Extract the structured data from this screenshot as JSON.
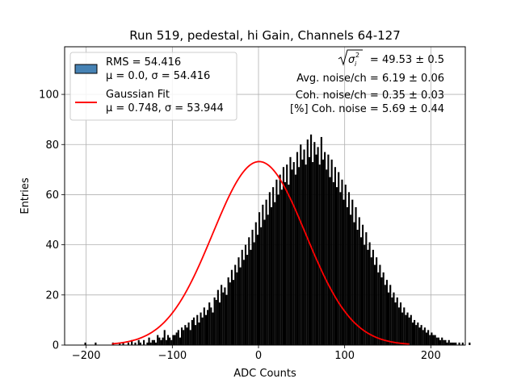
{
  "chart_data": {
    "type": "histogram",
    "title": "Run 519, pedestal, hi Gain, Channels 64-127",
    "xlabel": "ADC Counts",
    "ylabel": "Entries",
    "xlim": [
      -225,
      240
    ],
    "ylim": [
      0,
      119
    ],
    "xticks": [
      -200,
      -100,
      0,
      100,
      200
    ],
    "xtick_labels": [
      "−200",
      "−100",
      "0",
      "100",
      "200"
    ],
    "yticks": [
      0,
      20,
      40,
      60,
      80,
      100
    ],
    "ytick_labels": [
      "0",
      "20",
      "40",
      "60",
      "80",
      "100"
    ],
    "grid": true,
    "bin_width": 2,
    "histogram": {
      "name": "RMS = 54.416",
      "label_line2": "μ = 0.0, σ = 54.416",
      "color": "#000000",
      "legend_color": "#4682b4",
      "bin_start": -212,
      "counts": [
        0,
        0,
        0,
        0,
        0,
        1,
        0,
        0,
        0,
        0,
        0,
        1,
        0,
        0,
        0,
        0,
        0,
        0,
        0,
        0,
        0,
        1,
        0,
        0,
        0,
        1,
        0,
        1,
        0,
        0,
        1,
        0,
        2,
        0,
        1,
        0,
        2,
        1,
        0,
        2,
        0,
        1,
        3,
        1,
        2,
        2,
        1,
        4,
        3,
        2,
        3,
        6,
        2,
        4,
        3,
        2,
        4,
        4,
        5,
        6,
        3,
        7,
        6,
        8,
        7,
        9,
        6,
        10,
        11,
        8,
        12,
        9,
        13,
        11,
        15,
        12,
        14,
        17,
        15,
        13,
        19,
        18,
        22,
        17,
        24,
        21,
        23,
        20,
        27,
        25,
        30,
        26,
        32,
        29,
        35,
        31,
        38,
        34,
        40,
        36,
        43,
        38,
        46,
        41,
        49,
        44,
        53,
        47,
        56,
        50,
        58,
        52,
        61,
        55,
        63,
        57,
        66,
        60,
        68,
        62,
        71,
        65,
        72,
        64,
        75,
        70,
        73,
        68,
        77,
        71,
        80,
        74,
        78,
        72,
        82,
        75,
        84,
        73,
        81,
        76,
        79,
        72,
        83,
        74,
        77,
        70,
        76,
        67,
        74,
        65,
        71,
        63,
        69,
        61,
        66,
        58,
        64,
        55,
        61,
        52,
        58,
        49,
        55,
        46,
        51,
        43,
        48,
        40,
        45,
        38,
        41,
        35,
        38,
        32,
        35,
        29,
        32,
        27,
        29,
        24,
        26,
        21,
        24,
        19,
        21,
        17,
        19,
        15,
        17,
        13,
        15,
        12,
        13,
        11,
        12,
        9,
        10,
        8,
        9,
        7,
        8,
        6,
        7,
        5,
        6,
        4,
        5,
        4,
        4,
        3,
        3,
        2,
        3,
        2,
        2,
        1,
        2,
        1,
        1,
        1,
        1,
        0,
        1,
        0,
        1,
        0,
        0,
        0,
        1,
        0,
        0,
        0,
        0,
        0
      ]
    },
    "fit": {
      "name": "Gaussian Fit",
      "label_line2": "μ = 0.748, σ = 53.944",
      "color": "#ff0000",
      "mu": 0.748,
      "sigma": 53.944,
      "amplitude": 73.2
    },
    "legend_position": "upper-left",
    "annotations": [
      "= 49.53 ± 0.5",
      "Avg. noise/ch = 6.19 ± 0.06",
      "Coh. noise/ch = 0.35 ± 0.03",
      "[%] Coh. noise = 5.69 ± 0.44"
    ]
  }
}
